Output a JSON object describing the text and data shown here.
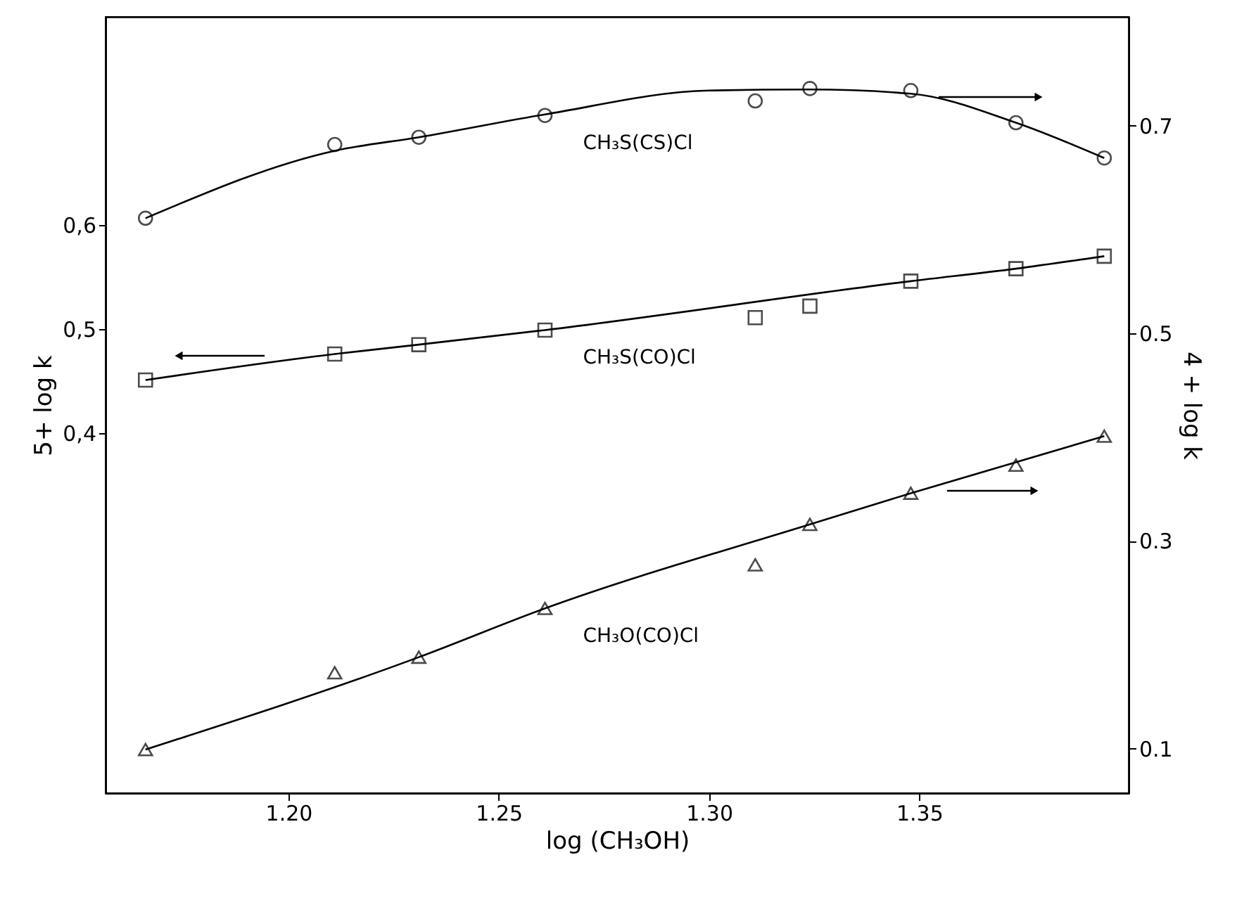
{
  "chart_data": {
    "type": "scatter",
    "xlabel": "log (CH₃OH)",
    "ylabel": "5+ log k",
    "y2label": "4 + log k",
    "x": [
      1.166,
      1.211,
      1.231,
      1.261,
      1.311,
      1.324,
      1.348,
      1.373,
      1.394
    ],
    "xlim": [
      1.1565,
      1.3998
    ],
    "xticks": [
      {
        "value": 1.2,
        "label": "1.20"
      },
      {
        "value": 1.25,
        "label": "1.25"
      },
      {
        "value": 1.3,
        "label": "1.30"
      },
      {
        "value": 1.35,
        "label": "1.35"
      }
    ],
    "ylim": [
      0.054,
      0.8
    ],
    "yticks": [
      {
        "value": 0.4,
        "label": "0,4"
      },
      {
        "value": 0.5,
        "label": "0,5"
      },
      {
        "value": 0.6,
        "label": "0,6"
      }
    ],
    "y2lim": [
      0.057,
      0.805
    ],
    "y2ticks": [
      0.1,
      0.3,
      0.5,
      0.7
    ],
    "series": [
      {
        "name": "CH₃S(CS)Cl",
        "axis": "y2",
        "marker": "circle",
        "color": "#000000",
        "values": [
          0.611,
          0.682,
          0.689,
          0.71,
          0.724,
          0.736,
          0.734,
          0.703,
          0.669
        ]
      },
      {
        "type": "line",
        "axis": "y2",
        "color": "#000000",
        "x": [
          1.166,
          1.211,
          1.231,
          1.261,
          1.3,
          1.324,
          1.348,
          1.373,
          1.394
        ],
        "values": [
          0.611,
          0.676,
          0.689,
          0.711,
          0.734,
          0.735,
          0.731,
          0.703,
          0.669
        ]
      },
      {
        "name": "CH₃S(CO)Cl",
        "axis": "y",
        "marker": "square",
        "color": "#000000",
        "values": [
          0.451,
          0.476,
          0.485,
          0.499,
          0.511,
          0.522,
          0.546,
          0.558,
          0.57
        ]
      },
      {
        "type": "line",
        "axis": "y",
        "color": "#000000",
        "x": [
          1.166,
          1.211,
          1.231,
          1.261,
          1.348,
          1.373,
          1.394
        ],
        "values": [
          0.451,
          0.476,
          0.485,
          0.499,
          0.546,
          0.558,
          0.57
        ]
      },
      {
        "name": "CH₃O(CO)Cl",
        "axis": "y2",
        "marker": "triangle",
        "color": "#000000",
        "values": [
          0.099,
          0.173,
          0.188,
          0.235,
          0.277,
          0.316,
          0.346,
          0.373,
          0.401
        ]
      },
      {
        "type": "line",
        "axis": "y2",
        "color": "#000000",
        "x": [
          1.166,
          1.231,
          1.261,
          1.324,
          1.348,
          1.394
        ],
        "values": [
          0.099,
          0.188,
          0.235,
          0.316,
          0.346,
          0.401
        ]
      }
    ]
  }
}
